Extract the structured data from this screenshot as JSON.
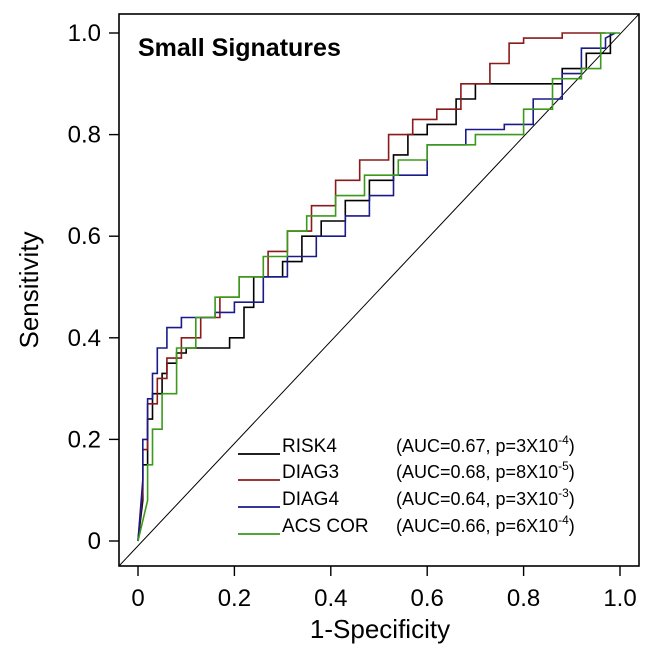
{
  "chart_data": {
    "type": "line",
    "title": "Small Signatures",
    "xlabel": "1-Specificity",
    "ylabel": "Sensitivity",
    "xlim": [
      0,
      1
    ],
    "ylim": [
      0,
      1
    ],
    "xticks": [
      0,
      0.2,
      0.4,
      0.6,
      0.8,
      1.0
    ],
    "xtick_labels": [
      "0",
      "0.2",
      "0.4",
      "0.6",
      "0.8",
      "1.0"
    ],
    "yticks": [
      0,
      0.2,
      0.4,
      0.6,
      0.8,
      1.0
    ],
    "ytick_labels": [
      "0",
      "0.2",
      "0.4",
      "0.6",
      "0.8",
      "1.0"
    ],
    "grid": false,
    "legend_position": "bottom-right",
    "diagonal_reference": true,
    "series": [
      {
        "name": "RISK4",
        "stat_prefix": "(AUC=0.67, p=3X10",
        "stat_exp": "-4",
        "stat_suffix": ")",
        "color": "#000000",
        "x": [
          0,
          0.01,
          0.01,
          0.02,
          0.02,
          0.03,
          0.03,
          0.05,
          0.05,
          0.06,
          0.06,
          0.08,
          0.08,
          0.1,
          0.1,
          0.19,
          0.19,
          0.22,
          0.22,
          0.24,
          0.24,
          0.3,
          0.3,
          0.34,
          0.34,
          0.38,
          0.38,
          0.43,
          0.43,
          0.48,
          0.48,
          0.53,
          0.53,
          0.56,
          0.56,
          0.6,
          0.6,
          0.66,
          0.66,
          0.7,
          0.7,
          0.88,
          0.88,
          0.93,
          0.93,
          0.98,
          0.98
        ],
        "y": [
          0,
          0.08,
          0.15,
          0.15,
          0.24,
          0.24,
          0.29,
          0.29,
          0.33,
          0.33,
          0.35,
          0.35,
          0.37,
          0.37,
          0.38,
          0.38,
          0.4,
          0.4,
          0.46,
          0.46,
          0.52,
          0.52,
          0.55,
          0.55,
          0.6,
          0.6,
          0.63,
          0.63,
          0.67,
          0.67,
          0.71,
          0.71,
          0.76,
          0.76,
          0.8,
          0.8,
          0.82,
          0.82,
          0.87,
          0.87,
          0.9,
          0.9,
          0.93,
          0.93,
          0.96,
          0.96,
          1.0
        ]
      },
      {
        "name": "DIAG3",
        "stat_prefix": "(AUC=0.68, p=8X10",
        "stat_exp": "-5",
        "stat_suffix": ")",
        "color": "#8b1a1a",
        "x": [
          0,
          0.01,
          0.01,
          0.02,
          0.02,
          0.04,
          0.04,
          0.06,
          0.06,
          0.09,
          0.09,
          0.13,
          0.13,
          0.17,
          0.17,
          0.21,
          0.21,
          0.27,
          0.27,
          0.31,
          0.31,
          0.36,
          0.36,
          0.41,
          0.41,
          0.46,
          0.46,
          0.52,
          0.52,
          0.57,
          0.57,
          0.62,
          0.62,
          0.67,
          0.67,
          0.73,
          0.73,
          0.77,
          0.77,
          0.8,
          0.8,
          0.88,
          0.88,
          0.92,
          0.92,
          0.97,
          0.97
        ],
        "y": [
          0,
          0.1,
          0.18,
          0.18,
          0.27,
          0.27,
          0.32,
          0.32,
          0.36,
          0.36,
          0.4,
          0.4,
          0.44,
          0.44,
          0.48,
          0.48,
          0.52,
          0.52,
          0.57,
          0.57,
          0.61,
          0.61,
          0.66,
          0.66,
          0.71,
          0.71,
          0.75,
          0.75,
          0.8,
          0.8,
          0.83,
          0.83,
          0.85,
          0.85,
          0.9,
          0.9,
          0.94,
          0.94,
          0.98,
          0.98,
          0.99,
          0.99,
          1.0,
          1.0,
          1.0,
          1.0,
          1.0
        ]
      },
      {
        "name": "DIAG4",
        "stat_prefix": "(AUC=0.64, p=3X10",
        "stat_exp": "-3",
        "stat_suffix": ")",
        "color": "#1a1a8b",
        "x": [
          0,
          0.01,
          0.01,
          0.02,
          0.02,
          0.03,
          0.03,
          0.04,
          0.04,
          0.06,
          0.06,
          0.09,
          0.09,
          0.16,
          0.16,
          0.2,
          0.2,
          0.26,
          0.26,
          0.31,
          0.31,
          0.37,
          0.37,
          0.43,
          0.43,
          0.48,
          0.48,
          0.53,
          0.53,
          0.6,
          0.6,
          0.68,
          0.68,
          0.76,
          0.76,
          0.82,
          0.82,
          0.88,
          0.88,
          0.92,
          0.92,
          0.97,
          0.97,
          0.99
        ],
        "y": [
          0,
          0.12,
          0.2,
          0.2,
          0.28,
          0.28,
          0.33,
          0.33,
          0.38,
          0.38,
          0.42,
          0.42,
          0.44,
          0.44,
          0.45,
          0.45,
          0.47,
          0.47,
          0.52,
          0.52,
          0.56,
          0.56,
          0.6,
          0.6,
          0.64,
          0.64,
          0.68,
          0.68,
          0.72,
          0.72,
          0.78,
          0.78,
          0.81,
          0.81,
          0.82,
          0.82,
          0.87,
          0.87,
          0.92,
          0.92,
          0.97,
          0.97,
          0.99,
          1.0
        ]
      },
      {
        "name": "ACS COR",
        "stat_prefix": "(AUC=0.66, p=6X10",
        "stat_exp": "-4",
        "stat_suffix": ")",
        "color": "#3a9a1a",
        "x": [
          0,
          0.02,
          0.02,
          0.03,
          0.03,
          0.05,
          0.05,
          0.08,
          0.08,
          0.12,
          0.12,
          0.16,
          0.16,
          0.21,
          0.21,
          0.26,
          0.26,
          0.31,
          0.31,
          0.35,
          0.35,
          0.41,
          0.41,
          0.47,
          0.47,
          0.54,
          0.54,
          0.6,
          0.6,
          0.7,
          0.7,
          0.8,
          0.8,
          0.86,
          0.86,
          0.92,
          0.92,
          0.96,
          0.96,
          1.0
        ],
        "y": [
          0,
          0.08,
          0.15,
          0.15,
          0.22,
          0.22,
          0.29,
          0.29,
          0.38,
          0.38,
          0.44,
          0.44,
          0.48,
          0.48,
          0.52,
          0.52,
          0.56,
          0.56,
          0.61,
          0.61,
          0.64,
          0.64,
          0.68,
          0.68,
          0.72,
          0.72,
          0.75,
          0.75,
          0.78,
          0.78,
          0.8,
          0.8,
          0.85,
          0.85,
          0.91,
          0.91,
          0.93,
          0.93,
          1.0,
          1.0
        ]
      }
    ]
  }
}
